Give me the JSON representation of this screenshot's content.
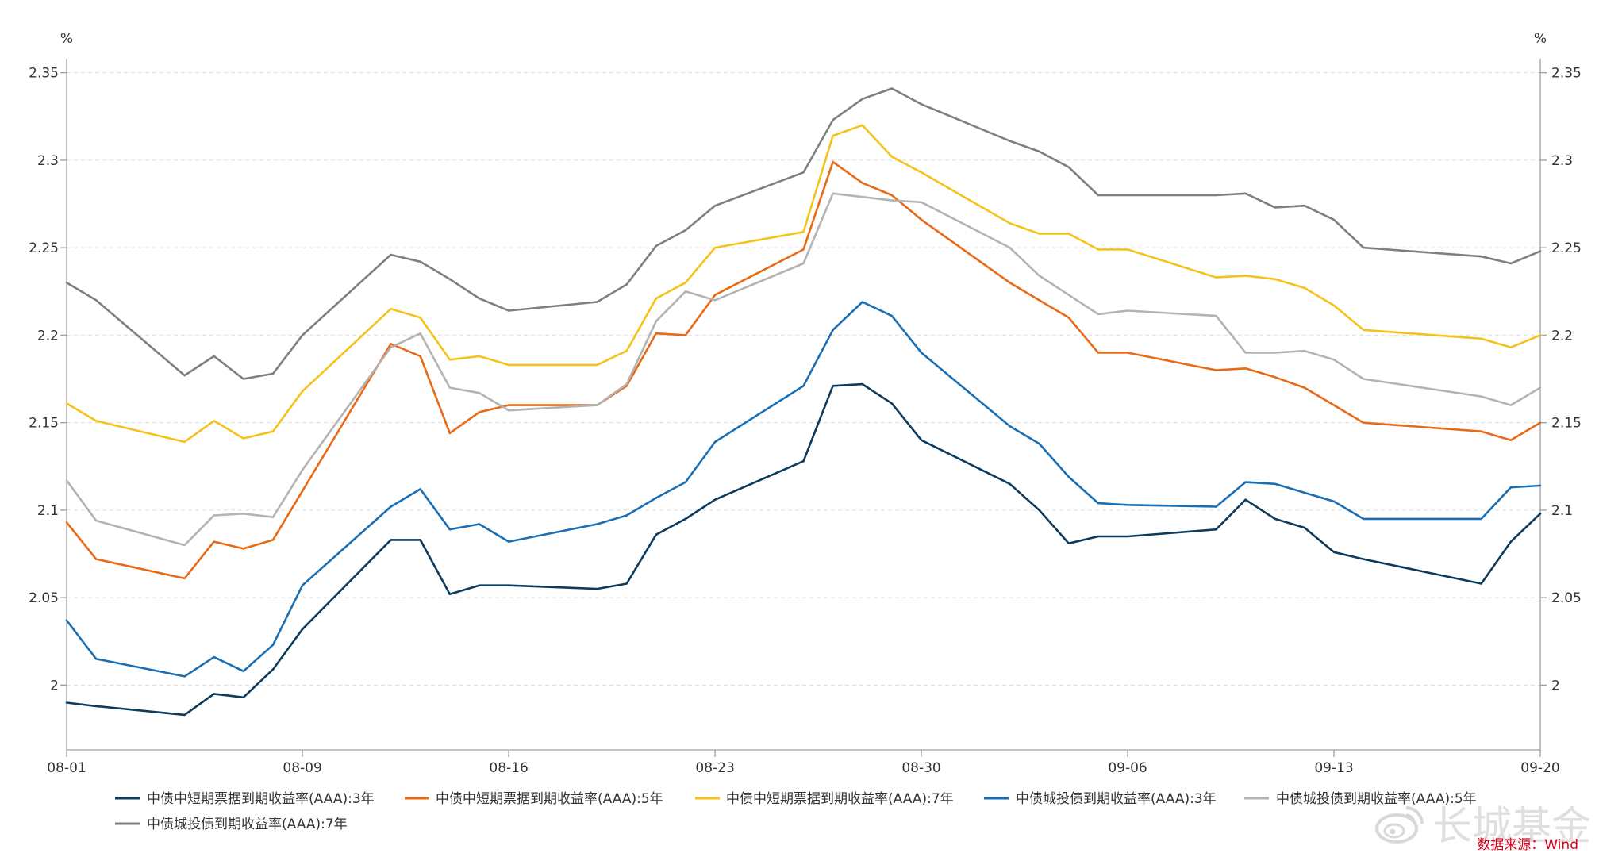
{
  "chart_data": {
    "type": "line",
    "unit_left": "%",
    "unit_right": "%",
    "xlim": [
      "08-01",
      "09-20"
    ],
    "ylim": [
      1.963,
      2.358
    ],
    "x_ticks": [
      "08-01",
      "08-09",
      "08-16",
      "08-23",
      "08-30",
      "09-06",
      "09-13",
      "09-20"
    ],
    "y_ticks": [
      2,
      2.05,
      2.1,
      2.15,
      2.2,
      2.25,
      2.3,
      2.35
    ],
    "grid": true,
    "legend": "bottom",
    "x": [
      "08-01",
      "08-02",
      "08-05",
      "08-06",
      "08-07",
      "08-08",
      "08-09",
      "08-12",
      "08-13",
      "08-14",
      "08-15",
      "08-16",
      "08-19",
      "08-20",
      "08-21",
      "08-22",
      "08-23",
      "08-26",
      "08-27",
      "08-28",
      "08-29",
      "08-30",
      "09-02",
      "09-03",
      "09-04",
      "09-05",
      "09-06",
      "09-09",
      "09-10",
      "09-11",
      "09-12",
      "09-13",
      "09-14",
      "09-18",
      "09-19",
      "09-20"
    ],
    "series": [
      {
        "name": "中债中短期票据到期收益率(AAA):3年",
        "color": "#0c3b5e",
        "values": [
          1.99,
          1.988,
          1.983,
          1.995,
          1.993,
          2.009,
          2.032,
          2.083,
          2.083,
          2.052,
          2.057,
          2.057,
          2.055,
          2.058,
          2.086,
          2.095,
          2.106,
          2.128,
          2.171,
          2.172,
          2.161,
          2.14,
          2.115,
          2.1,
          2.081,
          2.085,
          2.085,
          2.089,
          2.106,
          2.095,
          2.09,
          2.076,
          2.072,
          2.058,
          2.082,
          2.098
        ]
      },
      {
        "name": "中债中短期票据到期收益率(AAA):5年",
        "color": "#e86a16",
        "values": [
          2.093,
          2.072,
          2.061,
          2.082,
          2.078,
          2.083,
          2.111,
          2.195,
          2.188,
          2.144,
          2.156,
          2.16,
          2.16,
          2.171,
          2.201,
          2.2,
          2.223,
          2.249,
          2.299,
          2.287,
          2.28,
          2.266,
          2.23,
          2.22,
          2.21,
          2.19,
          2.19,
          2.18,
          2.181,
          2.176,
          2.17,
          2.16,
          2.15,
          2.145,
          2.14,
          2.15
        ]
      },
      {
        "name": "中债中短期票据到期收益率(AAA):7年",
        "color": "#f6c21a",
        "values": [
          2.161,
          2.151,
          2.139,
          2.151,
          2.141,
          2.145,
          2.168,
          2.215,
          2.21,
          2.186,
          2.188,
          2.183,
          2.183,
          2.191,
          2.221,
          2.23,
          2.25,
          2.259,
          2.314,
          2.32,
          2.302,
          2.293,
          2.264,
          2.258,
          2.258,
          2.249,
          2.249,
          2.233,
          2.234,
          2.232,
          2.227,
          2.217,
          2.203,
          2.198,
          2.193,
          2.2
        ]
      },
      {
        "name": "中债城投债到期收益率(AAA):3年",
        "color": "#1a6fb4",
        "values": [
          2.037,
          2.015,
          2.005,
          2.016,
          2.008,
          2.023,
          2.057,
          2.102,
          2.112,
          2.089,
          2.092,
          2.082,
          2.092,
          2.097,
          2.107,
          2.116,
          2.139,
          2.171,
          2.203,
          2.219,
          2.211,
          2.19,
          2.148,
          2.138,
          2.119,
          2.104,
          2.103,
          2.102,
          2.116,
          2.115,
          2.11,
          2.105,
          2.095,
          2.095,
          2.113,
          2.114
        ]
      },
      {
        "name": "中债城投债到期收益率(AAA):5年",
        "color": "#b3b3b3",
        "values": [
          2.117,
          2.094,
          2.08,
          2.097,
          2.098,
          2.096,
          2.123,
          2.193,
          2.201,
          2.17,
          2.167,
          2.157,
          2.16,
          2.172,
          2.208,
          2.225,
          2.22,
          2.241,
          2.281,
          2.279,
          2.277,
          2.276,
          2.25,
          2.234,
          2.223,
          2.212,
          2.214,
          2.211,
          2.19,
          2.19,
          2.191,
          2.186,
          2.175,
          2.165,
          2.16,
          2.17
        ]
      },
      {
        "name": "中债城投债到期收益率(AAA):7年",
        "color": "#7f7f7f",
        "values": [
          2.23,
          2.22,
          2.177,
          2.188,
          2.175,
          2.178,
          2.2,
          2.246,
          2.242,
          2.232,
          2.221,
          2.214,
          2.219,
          2.229,
          2.251,
          2.26,
          2.274,
          2.293,
          2.323,
          2.335,
          2.341,
          2.332,
          2.311,
          2.305,
          2.296,
          2.28,
          2.28,
          2.28,
          2.281,
          2.273,
          2.274,
          2.266,
          2.25,
          2.245,
          2.241,
          2.248
        ]
      }
    ]
  },
  "watermark": "长城基金",
  "source_note": "数据来源：Wind"
}
